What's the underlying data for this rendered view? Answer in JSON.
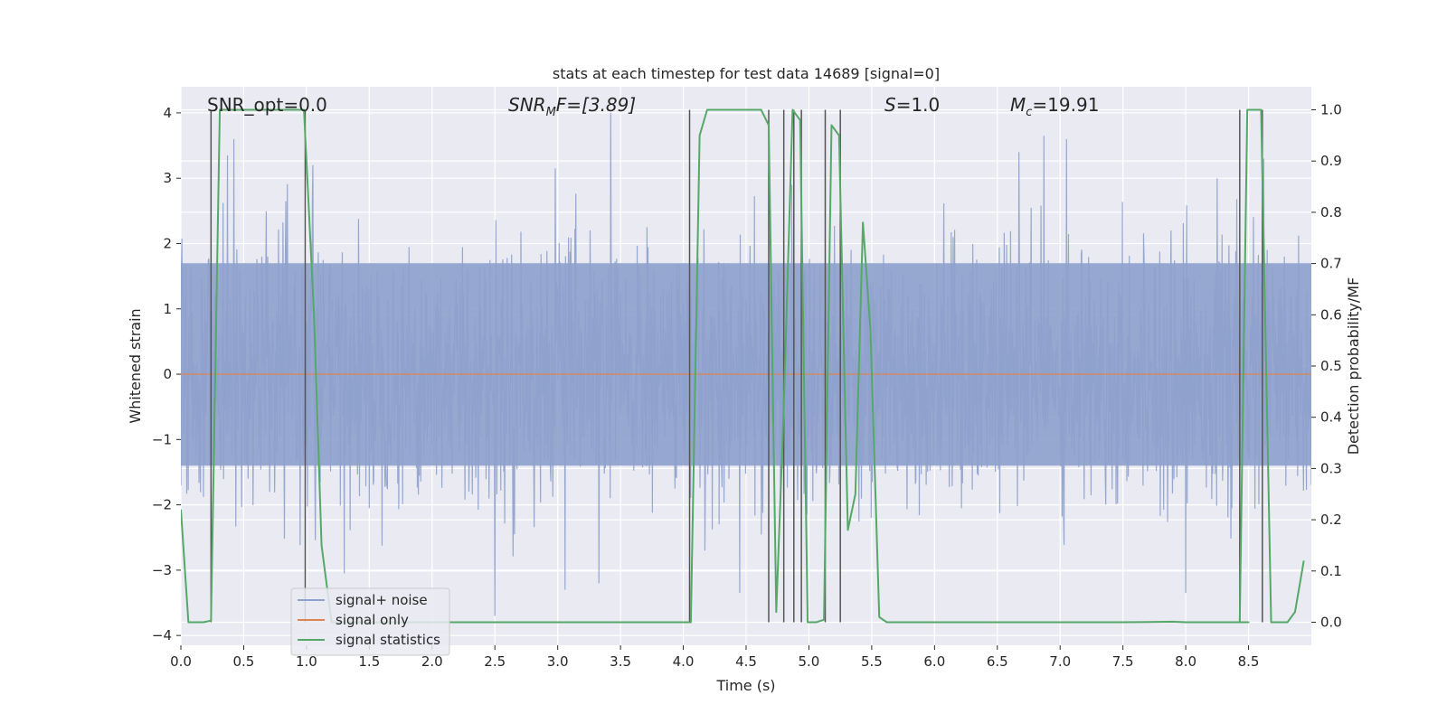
{
  "chart_data": {
    "type": "line",
    "title": "stats at each timestep for test data 14689 [signal=0]",
    "xlabel": "Time (s)",
    "ylabel": "Whitened strain",
    "y2label": "Detection probability/MF",
    "xlim": [
      0,
      9
    ],
    "ylim": [
      -4.15,
      4.4
    ],
    "y2lim": [
      -0.045,
      1.045
    ],
    "xticks": [
      0.0,
      0.5,
      1.0,
      1.5,
      2.0,
      2.5,
      3.0,
      3.5,
      4.0,
      4.5,
      5.0,
      5.5,
      6.0,
      6.5,
      7.0,
      7.5,
      8.0,
      8.5
    ],
    "xtick_labels": [
      "0.0",
      "0.5",
      "1.0",
      "1.5",
      "2.0",
      "2.5",
      "3.0",
      "3.5",
      "4.0",
      "4.5",
      "5.0",
      "5.5",
      "6.0",
      "6.5",
      "7.0",
      "7.5",
      "8.0",
      "8.5"
    ],
    "yticks": [
      -4,
      -3,
      -2,
      -1,
      0,
      1,
      2,
      3,
      4
    ],
    "ytick_labels": [
      "−4",
      "−3",
      "−2",
      "−1",
      "0",
      "1",
      "2",
      "3",
      "4"
    ],
    "y2ticks": [
      0.0,
      0.1,
      0.2,
      0.3,
      0.4,
      0.5,
      0.6,
      0.7,
      0.8,
      0.9,
      1.0
    ],
    "y2tick_labels": [
      "0.0",
      "0.1",
      "0.2",
      "0.3",
      "0.4",
      "0.5",
      "0.6",
      "0.7",
      "0.8",
      "0.9",
      "1.0"
    ],
    "grid": true,
    "noise": {
      "name": "signal+ noise",
      "color": "#8ea1cc",
      "sample_rate": 256,
      "core_band": [
        -1.4,
        1.7
      ],
      "peaks": [
        {
          "t": 0.37,
          "y": 3.35
        },
        {
          "t": 0.42,
          "y": 3.6
        },
        {
          "t": 1.05,
          "y": 3.2
        },
        {
          "t": 2.98,
          "y": 3.15
        },
        {
          "t": 3.42,
          "y": 4.0
        },
        {
          "t": 6.67,
          "y": 3.4
        },
        {
          "t": 6.87,
          "y": 3.65
        },
        {
          "t": 7.05,
          "y": 3.6
        },
        {
          "t": 8.25,
          "y": 3.0
        },
        {
          "t": 8.62,
          "y": 3.3
        }
      ],
      "troughs": [
        {
          "t": 2.5,
          "y": -3.7
        },
        {
          "t": 3.06,
          "y": -3.3
        },
        {
          "t": 3.33,
          "y": -3.2
        },
        {
          "t": 4.45,
          "y": -3.35
        },
        {
          "t": 8.0,
          "y": -3.35
        },
        {
          "t": 1.3,
          "y": -3.05
        }
      ]
    },
    "series": [
      {
        "name": "signal only",
        "color": "#dd8452",
        "axis": "left",
        "x": [
          0,
          9
        ],
        "y": [
          0,
          0
        ]
      },
      {
        "name": "signal statistics",
        "color": "#55a868",
        "axis": "right",
        "x": [
          0.0,
          0.06,
          0.18,
          0.24,
          0.31,
          0.6,
          0.98,
          1.06,
          1.12,
          1.2,
          1.5,
          2.0,
          2.5,
          3.0,
          3.5,
          4.0,
          4.06,
          4.13,
          4.19,
          4.62,
          4.68,
          4.74,
          4.8,
          4.87,
          4.93,
          4.99,
          5.06,
          5.12,
          5.18,
          5.24,
          5.31,
          5.37,
          5.43,
          5.49,
          5.56,
          5.62,
          6.0,
          6.5,
          7.0,
          7.5,
          7.9,
          8.0,
          8.5,
          8.43,
          8.49,
          8.55,
          8.6,
          8.68,
          8.81,
          8.87,
          8.94
        ],
        "y": [
          0.22,
          0.0,
          0.0,
          0.003,
          1.0,
          1.0,
          1.0,
          0.6,
          0.15,
          0.0,
          0.0,
          0.0,
          0.0,
          0.0,
          0.0,
          0.0,
          0.0,
          0.95,
          1.0,
          1.0,
          0.97,
          0.02,
          0.42,
          1.0,
          0.98,
          0.0,
          0.0,
          0.005,
          0.97,
          0.95,
          0.18,
          0.25,
          0.78,
          0.57,
          0.01,
          0.0,
          0.0,
          0.0,
          0.0,
          0.0,
          0.001,
          0.0,
          0.0,
          0.0,
          1.0,
          1.0,
          1.0,
          0.0,
          0.0,
          0.02,
          0.12
        ]
      }
    ],
    "vlines": [
      0.24,
      0.99,
      4.05,
      4.68,
      4.8,
      4.88,
      4.94,
      5.13,
      5.25,
      8.43,
      8.61
    ],
    "vline_color": "#555555",
    "vline_ymax": 1.0,
    "annotations": [
      {
        "id": "snr-opt",
        "text": "SNR_opt=0.0"
      },
      {
        "id": "snr-mf",
        "base": "SNR",
        "sub": "M",
        "tail": "F=[3.89]"
      },
      {
        "id": "s-value",
        "base": "S",
        "tail": "=1.0"
      },
      {
        "id": "mc-value",
        "base": "M",
        "sub": "c",
        "tail": "=19.91"
      }
    ],
    "legend_position": "lower-left",
    "legend": [
      "signal+ noise",
      "signal only",
      "signal statistics"
    ],
    "background_color": "#eaeaf2",
    "grid_color": "#ffffff"
  }
}
